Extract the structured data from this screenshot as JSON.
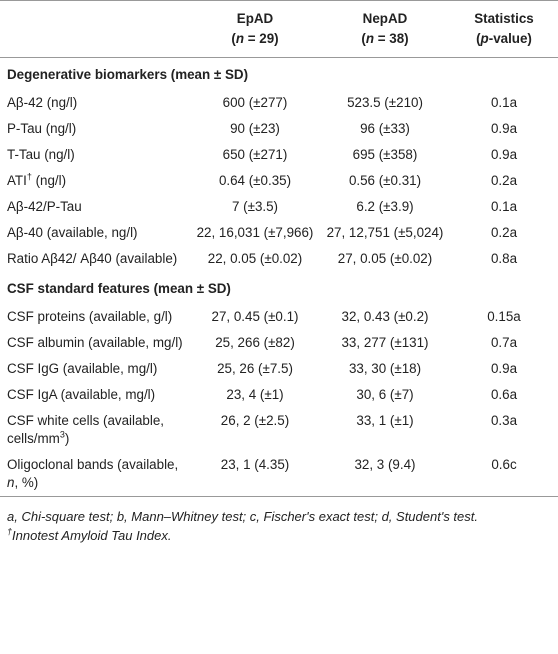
{
  "table": {
    "header": [
      [
        [
          "EpAD"
        ],
        [
          "(",
          {
            "i": "n"
          },
          " = 29)"
        ]
      ],
      [
        [
          "NepAD"
        ],
        [
          "(",
          {
            "i": "n"
          },
          " = 38)"
        ]
      ],
      [
        [
          "Statistics"
        ],
        [
          "(",
          {
            "i": "p"
          },
          "-value)"
        ]
      ]
    ],
    "sections": [
      {
        "title": "Degenerative biomarkers (mean ± SD)",
        "rows": [
          [
            "Aβ-42 (ng/l)",
            "600 (±277)",
            "523.5 (±210)",
            "0.1a"
          ],
          [
            "P-Tau (ng/l)",
            "90 (±23)",
            "96 (±33)",
            "0.9a"
          ],
          [
            "T-Tau (ng/l)",
            "650 (±271)",
            "695 (±358)",
            "0.9a"
          ],
          [
            [
              "ATI",
              {
                "sup": "†"
              },
              " (ng/l)"
            ],
            "0.64 (±0.35)",
            "0.56 (±0.31)",
            "0.2a"
          ],
          [
            "Aβ-42/P-Tau",
            "7 (±3.5)",
            "6.2 (±3.9)",
            "0.1a"
          ],
          [
            "Aβ-40 (available, ng/l)",
            "22, 16,031 (±7,966)",
            "27, 12,751 (±5,024)",
            "0.2a"
          ],
          [
            "Ratio Aβ42/ Aβ40 (available)",
            "22, 0.05 (±0.02)",
            "27, 0.05 (±0.02)",
            "0.8a"
          ]
        ]
      },
      {
        "title": "CSF standard features (mean ± SD)",
        "rows": [
          [
            "CSF proteins (available, g/l)",
            "27, 0.45 (±0.1)",
            "32, 0.43 (±0.2)",
            "0.15a"
          ],
          [
            "CSF albumin (available, mg/l)",
            "25, 266 (±82)",
            "33, 277 (±131)",
            "0.7a"
          ],
          [
            "CSF IgG (available, mg/l)",
            "25, 26 (±7.5)",
            "33, 30 (±18)",
            "0.9a"
          ],
          [
            "CSF IgA (available, mg/l)",
            "23, 4 (±1)",
            "30, 6 (±7)",
            "0.6a"
          ],
          [
            [
              "CSF white cells (available, cells/mm",
              {
                "sup": "3"
              },
              ")"
            ],
            "26, 2 (±2.5)",
            "33, 1 (±1)",
            "0.3a"
          ],
          [
            [
              "Oligoclonal bands (available, ",
              {
                "i": "n"
              },
              ", %)"
            ],
            "23, 1 (4.35)",
            "32, 3 (9.4)",
            "0.6c"
          ]
        ]
      }
    ],
    "footnotes": [
      [
        {
          "i": "a, Chi-square test; b, Mann–Whitney test; c, Fischer's exact test; d, Student's test."
        }
      ],
      [
        {
          "sup": "†"
        },
        {
          "i": "Innotest Amyloid Tau Index."
        }
      ]
    ]
  }
}
